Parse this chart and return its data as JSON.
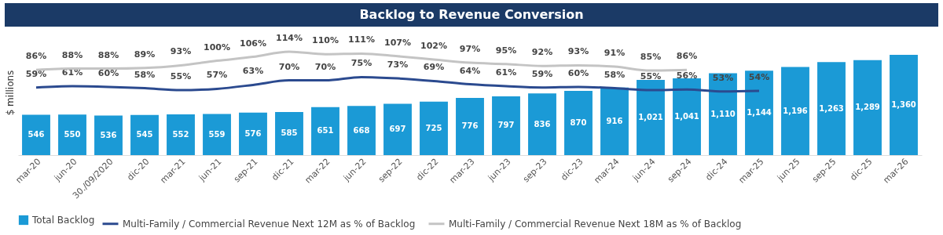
{
  "chart_data": {
    "type": "bar",
    "title": "Backlog to Revenue Conversion",
    "ylabel": "$ millions",
    "categories": [
      "mar-20",
      "jun-20",
      "30./09/2020",
      "dic-20",
      "mar-21",
      "jun-21",
      "sep-21",
      "dic-21",
      "mar-22",
      "jun-22",
      "sep-22",
      "dic-22",
      "mar-23",
      "jun-23",
      "sep-23",
      "dic-23",
      "mar-24",
      "jun-24",
      "sep-24",
      "dic-24",
      "mar-25",
      "jun-25",
      "sep-25",
      "dic-25",
      "mar-26"
    ],
    "series": [
      {
        "name": "Total Backlog",
        "color": "#1b9ad6",
        "values": [
          546,
          550,
          536,
          545,
          552,
          559,
          576,
          585,
          651,
          668,
          697,
          725,
          776,
          797,
          836,
          870,
          916,
          1021,
          1041,
          1110,
          1144,
          1196,
          1263,
          1289,
          1360
        ],
        "value_labels": [
          "546",
          "550",
          "536",
          "545",
          "552",
          "559",
          "576",
          "585",
          "651",
          "668",
          "697",
          "725",
          "776",
          "797",
          "836",
          "870",
          "916",
          "1,021",
          "1,041",
          "1,110",
          "1,144",
          "1,196",
          "1,263",
          "1,289",
          "1,360"
        ]
      },
      {
        "name": "Multi-Family / Commercial Revenue Next 12M as % of Backlog",
        "type": "line",
        "axis": "y2",
        "color": "#2b4a8f",
        "values": [
          59,
          61,
          60,
          58,
          55,
          57,
          63,
          70,
          70,
          75,
          73,
          69,
          64,
          61,
          59,
          60,
          58,
          55,
          56,
          53,
          54,
          null,
          null,
          null,
          null
        ],
        "value_labels": [
          "59%",
          "61%",
          "60%",
          "58%",
          "55%",
          "57%",
          "63%",
          "70%",
          "70%",
          "75%",
          "73%",
          "69%",
          "64%",
          "61%",
          "59%",
          "60%",
          "58%",
          "55%",
          "56%",
          "53%",
          "54%",
          null,
          null,
          null,
          null
        ]
      },
      {
        "name": "Multi-Family / Commercial Revenue Next 18M as % of Backlog",
        "type": "line",
        "axis": "y2",
        "color": "#c4c4c4",
        "values": [
          86,
          88,
          88,
          89,
          93,
          100,
          106,
          114,
          110,
          111,
          107,
          102,
          97,
          95,
          92,
          93,
          91,
          85,
          86,
          null,
          null,
          null,
          null,
          null,
          null
        ],
        "value_labels": [
          "86%",
          "88%",
          "88%",
          "89%",
          "93%",
          "100%",
          "106%",
          "114%",
          "110%",
          "111%",
          "107%",
          "102%",
          "97%",
          "95%",
          "92%",
          "93%",
          "91%",
          "85%",
          "86%",
          null,
          null,
          null,
          null,
          null,
          null
        ]
      }
    ],
    "grid": false,
    "legend": "bottom"
  }
}
